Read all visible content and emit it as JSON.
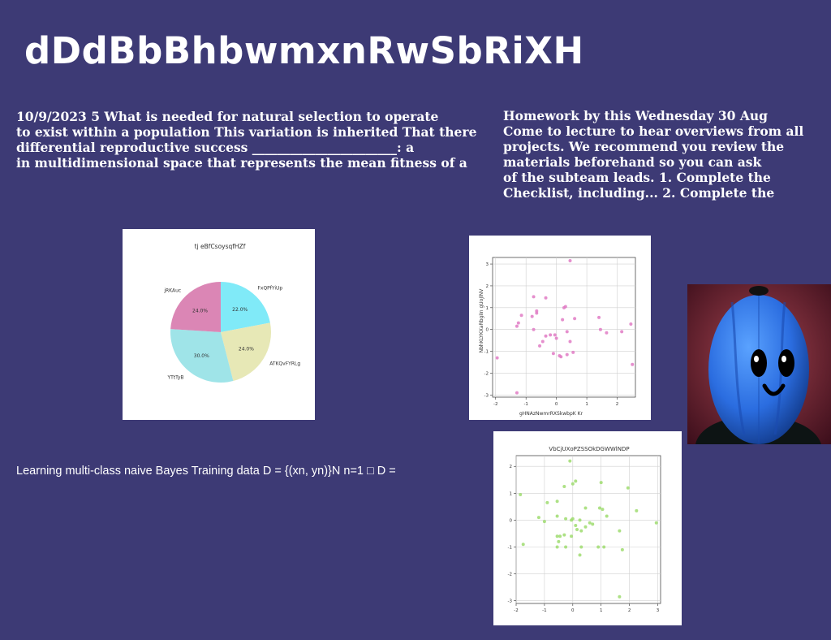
{
  "slide": {
    "title": "dDdBbBhbwmxnRwSbRiXH",
    "left_text": "10/9/2023 5 What is needed for natural selection to operate\nto exist within a population This variation is inherited That there\ndifferential reproductive success _______________________: a\nin multidimensional space that represents the mean fitness of a",
    "right_text": "Homework by this Wednesday 30 Aug\nCome to lecture to hear overviews from all\nprojects. We recommend you review the\nmaterials beforehand so you can ask\nof the subteam leads. 1. Complete the\nChecklist, including... 2. Complete the",
    "bottom_text": "Learning multi-class naive Bayes Training data D = {(xn, yn)}N n=1 □ D ="
  },
  "colors": {
    "background": "#3d3a75",
    "pie": [
      "#80eaf8",
      "#e7e8b6",
      "#9fe4e8",
      "#db86b5"
    ],
    "scatter1_points": "#e07bc4",
    "scatter2_points": "#9fdc70",
    "photo_bg_dark": "#3a0d1a",
    "photo_bg_light": "#a4434f",
    "character_blue": "#2b6de0"
  },
  "chart_data": [
    {
      "type": "pie",
      "title": "tj eBfCsoysqfHZf",
      "labels": [
        "FxQPfYiUp",
        "ATKQvFYRLg",
        "YTtTyB",
        "jRKAuc"
      ],
      "values": [
        22.0,
        24.0,
        30.0,
        24.0
      ],
      "pct_labels": [
        "22.0%",
        "24.0%",
        "30.0%",
        "24.0%"
      ]
    },
    {
      "type": "scatter",
      "title": "",
      "xlabel": "gHNAzNwmrRXSkwbpK Kr",
      "ylabel": "NbhKLYKXaRbgiIn gUoJlNV",
      "xlim": [
        -2.1,
        2.6
      ],
      "ylim": [
        -3.1,
        3.3
      ],
      "xticks": [
        -2,
        -1,
        0,
        1,
        2
      ],
      "yticks": [
        -3,
        -2,
        -1,
        0,
        1,
        2,
        3
      ],
      "grid": true,
      "points": [
        [
          0.45,
          3.15
        ],
        [
          -0.75,
          1.5
        ],
        [
          -0.35,
          1.45
        ],
        [
          -0.65,
          0.85
        ],
        [
          -0.65,
          0.75
        ],
        [
          -0.8,
          0.6
        ],
        [
          -1.15,
          0.65
        ],
        [
          -1.25,
          0.3
        ],
        [
          -1.3,
          0.15
        ],
        [
          0.25,
          1.0
        ],
        [
          0.3,
          1.05
        ],
        [
          0.2,
          0.45
        ],
        [
          0.6,
          0.5
        ],
        [
          1.4,
          0.55
        ],
        [
          2.45,
          0.25
        ],
        [
          -0.75,
          0.0
        ],
        [
          -0.2,
          -0.25
        ],
        [
          -0.35,
          -0.3
        ],
        [
          -0.05,
          -0.25
        ],
        [
          0.35,
          -0.1
        ],
        [
          0.45,
          -0.55
        ],
        [
          -0.45,
          -0.55
        ],
        [
          -0.55,
          -0.75
        ],
        [
          1.45,
          0.0
        ],
        [
          1.65,
          -0.15
        ],
        [
          2.15,
          -0.1
        ],
        [
          -0.1,
          -1.1
        ],
        [
          0.1,
          -1.2
        ],
        [
          0.15,
          -1.25
        ],
        [
          0.35,
          -1.15
        ],
        [
          0.55,
          -1.05
        ],
        [
          0.0,
          -0.4
        ],
        [
          2.5,
          -1.6
        ],
        [
          -1.95,
          -1.3
        ],
        [
          -1.3,
          -2.9
        ]
      ]
    },
    {
      "type": "scatter",
      "title": "VbCjUXoPZSSOkDGWWlNDP",
      "xlabel": "",
      "ylabel": "",
      "xlim": [
        -2.0,
        3.1
      ],
      "ylim": [
        -3.1,
        2.4
      ],
      "xticks": [
        -2,
        -1,
        0,
        1,
        2,
        3
      ],
      "yticks": [
        -3,
        -2,
        -1,
        0,
        1,
        2
      ],
      "grid": true,
      "points": [
        [
          -0.1,
          2.2
        ],
        [
          0.0,
          1.35
        ],
        [
          0.1,
          1.45
        ],
        [
          -0.3,
          1.25
        ],
        [
          1.0,
          1.4
        ],
        [
          -1.85,
          0.95
        ],
        [
          1.95,
          1.2
        ],
        [
          -0.55,
          0.7
        ],
        [
          -0.9,
          0.65
        ],
        [
          -1.2,
          0.1
        ],
        [
          -0.55,
          0.15
        ],
        [
          -0.25,
          0.05
        ],
        [
          -0.05,
          0.0
        ],
        [
          0.25,
          0.0
        ],
        [
          0.45,
          0.45
        ],
        [
          0.95,
          0.45
        ],
        [
          1.05,
          0.4
        ],
        [
          1.2,
          0.15
        ],
        [
          2.25,
          0.35
        ],
        [
          2.95,
          -0.1
        ],
        [
          -1.75,
          -0.9
        ],
        [
          -1.0,
          -0.05
        ],
        [
          0.0,
          0.05
        ],
        [
          0.1,
          -0.2
        ],
        [
          0.3,
          -0.4
        ],
        [
          0.45,
          -0.25
        ],
        [
          0.6,
          -0.1
        ],
        [
          0.7,
          -0.15
        ],
        [
          0.15,
          -0.35
        ],
        [
          -0.45,
          -0.6
        ],
        [
          -0.55,
          -0.6
        ],
        [
          -0.3,
          -0.55
        ],
        [
          -0.5,
          -0.8
        ],
        [
          -0.05,
          -0.6
        ],
        [
          -0.55,
          -1.0
        ],
        [
          -0.25,
          -1.0
        ],
        [
          0.3,
          -1.0
        ],
        [
          0.9,
          -1.0
        ],
        [
          1.1,
          -1.0
        ],
        [
          1.65,
          -0.4
        ],
        [
          1.75,
          -1.1
        ],
        [
          0.25,
          -1.3
        ],
        [
          1.65,
          -2.85
        ]
      ]
    }
  ]
}
